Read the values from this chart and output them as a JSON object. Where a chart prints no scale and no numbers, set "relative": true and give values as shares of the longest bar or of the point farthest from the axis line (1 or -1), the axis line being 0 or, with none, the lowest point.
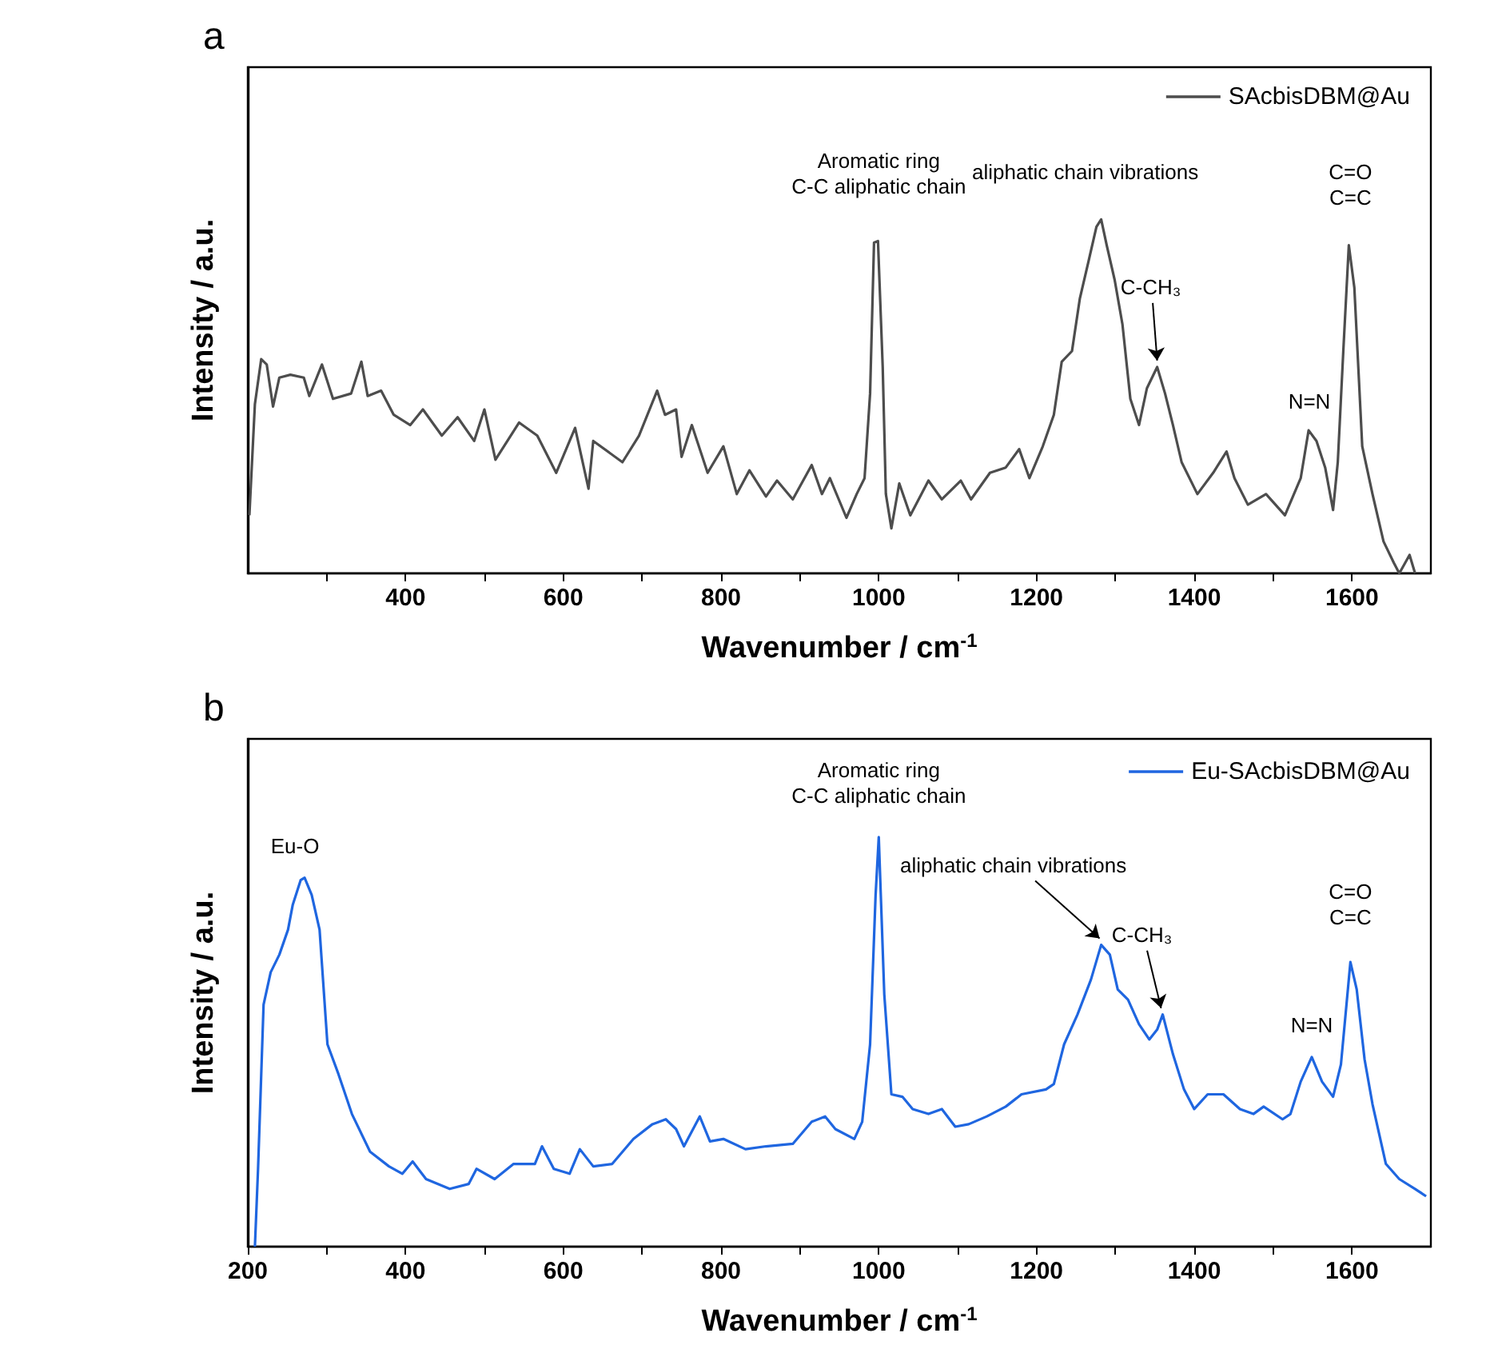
{
  "chart_data": [
    {
      "type": "line",
      "title": "a",
      "xlabel": "Wavenumber / cm$^{-1}$",
      "ylabel": "Intensity / a.u.",
      "relative": true,
      "legend": "top right",
      "tick_labels": "x",
      "xlim": [
        200,
        1700
      ],
      "xticks": [
        {
          "value": 300,
          "label": null
        },
        400,
        {
          "value": 500,
          "label": null
        },
        600,
        {
          "value": 700,
          "label": null
        },
        800,
        {
          "value": 900,
          "label": null
        },
        1000,
        {
          "value": 1100,
          "label": null
        },
        1200,
        {
          "value": 1300,
          "label": null
        },
        1400,
        {
          "value": 1500,
          "label": null
        },
        1600
      ],
      "annotations": [
        {
          "text": "Aromatic ring\nC-C aliphatic chain",
          "x": 1000,
          "y": 0.939
        },
        {
          "text": "aliphatic chain vibrations",
          "x": 1282,
          "y": 0.999
        },
        {
          "text": "C-CH₃",
          "x": 1355,
          "y": 0.583
        },
        {
          "text": "N=N",
          "x": 1550,
          "y": 0.404
        },
        {
          "text": "C=O\nC=C",
          "x": 1598,
          "y": 0.927
        }
      ],
      "series": [
        {
          "name": "SAcbisDBM@Au",
          "color": "#4d4d4d",
          "x": [
            202,
            209,
            217,
            224,
            232,
            240,
            254,
            271,
            278,
            294,
            308,
            331,
            344,
            352,
            369,
            385,
            406,
            422,
            446,
            466,
            487,
            500,
            514,
            544,
            567,
            591,
            615,
            632,
            638,
            675,
            696,
            719,
            729,
            743,
            750,
            763,
            783,
            803,
            820,
            836,
            857,
            871,
            891,
            915,
            928,
            938,
            959,
            972,
            982,
            989,
            994,
            999,
            1005,
            1009,
            1016,
            1026,
            1040,
            1063,
            1080,
            1104,
            1117,
            1141,
            1161,
            1178,
            1191,
            1208,
            1222,
            1232,
            1245,
            1255,
            1266,
            1276,
            1282,
            1289,
            1299,
            1309,
            1319,
            1330,
            1340,
            1353,
            1363,
            1373,
            1384,
            1404,
            1424,
            1441,
            1451,
            1468,
            1491,
            1515,
            1535,
            1545,
            1555,
            1566,
            1576,
            1582,
            1589,
            1596,
            1603,
            1613,
            1626,
            1640,
            1653,
            1660,
            1673,
            1680
          ],
          "values": [
            0.164,
            0.478,
            0.605,
            0.59,
            0.471,
            0.553,
            0.561,
            0.553,
            0.501,
            0.59,
            0.493,
            0.508,
            0.598,
            0.501,
            0.516,
            0.448,
            0.419,
            0.463,
            0.389,
            0.441,
            0.374,
            0.463,
            0.321,
            0.426,
            0.389,
            0.284,
            0.411,
            0.239,
            0.374,
            0.314,
            0.389,
            0.516,
            0.448,
            0.463,
            0.329,
            0.419,
            0.284,
            0.359,
            0.224,
            0.291,
            0.217,
            0.262,
            0.209,
            0.306,
            0.224,
            0.269,
            0.157,
            0.224,
            0.269,
            0.508,
            0.934,
            0.939,
            0.583,
            0.224,
            0.127,
            0.254,
            0.164,
            0.262,
            0.209,
            0.262,
            0.209,
            0.284,
            0.299,
            0.351,
            0.269,
            0.359,
            0.448,
            0.598,
            0.628,
            0.777,
            0.882,
            0.979,
            1,
            0.927,
            0.83,
            0.703,
            0.493,
            0.419,
            0.523,
            0.583,
            0.508,
            0.419,
            0.314,
            0.224,
            0.284,
            0.344,
            0.269,
            0.194,
            0.224,
            0.164,
            0.269,
            0.404,
            0.374,
            0.299,
            0.179,
            0.314,
            0.628,
            0.927,
            0.807,
            0.359,
            0.224,
            0.09,
            0.03,
            0,
            0.052,
            0
          ]
        }
      ]
    },
    {
      "type": "line",
      "title": "b",
      "xlabel": "Wavenumber / cm$^{-1}$",
      "ylabel": "Intensity / a.u.",
      "relative": true,
      "legend": "top right",
      "tick_labels": "x",
      "xlim": [
        200,
        1700
      ],
      "xticks": [
        200,
        {
          "value": 300,
          "label": null
        },
        400,
        {
          "value": 500,
          "label": null
        },
        600,
        {
          "value": 700,
          "label": null
        },
        800,
        {
          "value": 900,
          "label": null
        },
        1000,
        {
          "value": 1100,
          "label": null
        },
        1200,
        {
          "value": 1300,
          "label": null
        },
        1400,
        {
          "value": 1500,
          "label": null
        },
        1600
      ],
      "annotations": [
        {
          "text": "Eu-O",
          "x": 272,
          "y": 0.901
        },
        {
          "text": "Aromatic ring\nC-C aliphatic chain",
          "x": 1000,
          "y": 1
        },
        {
          "text": "aliphatic chain vibrations",
          "x": 1282,
          "y": 0.737
        },
        {
          "text": "C-CH₃",
          "x": 1360,
          "y": 0.567
        },
        {
          "text": "N=N",
          "x": 1549,
          "y": 0.463
        },
        {
          "text": "C=O\nC=C",
          "x": 1598,
          "y": 0.695
        }
      ],
      "series": [
        {
          "name": "Eu-SAcbisDBM@Au",
          "color": "#1f66e0",
          "x": [
            209,
            213,
            220,
            229,
            240,
            251,
            257,
            267,
            272,
            281,
            291,
            301,
            315,
            332,
            355,
            379,
            396,
            409,
            426,
            456,
            480,
            490,
            513,
            537,
            564,
            573,
            588,
            608,
            621,
            638,
            662,
            689,
            713,
            730,
            743,
            753,
            773,
            786,
            803,
            831,
            857,
            891,
            915,
            932,
            945,
            969,
            979,
            989,
            996,
            1000,
            1007,
            1016,
            1030,
            1043,
            1063,
            1080,
            1097,
            1114,
            1137,
            1161,
            1181,
            1212,
            1222,
            1235,
            1252,
            1269,
            1282,
            1293,
            1303,
            1316,
            1330,
            1343,
            1353,
            1360,
            1373,
            1387,
            1400,
            1417,
            1437,
            1458,
            1475,
            1488,
            1512,
            1522,
            1535,
            1549,
            1562,
            1576,
            1586,
            1598,
            1606,
            1616,
            1626,
            1643,
            1660,
            1680,
            1694
          ],
          "values": [
            0,
            0.19,
            0.591,
            0.67,
            0.713,
            0.774,
            0.835,
            0.895,
            0.901,
            0.859,
            0.774,
            0.494,
            0.421,
            0.324,
            0.232,
            0.196,
            0.178,
            0.208,
            0.165,
            0.141,
            0.153,
            0.19,
            0.165,
            0.202,
            0.202,
            0.245,
            0.19,
            0.178,
            0.238,
            0.196,
            0.202,
            0.263,
            0.299,
            0.311,
            0.287,
            0.245,
            0.318,
            0.257,
            0.263,
            0.238,
            0.245,
            0.251,
            0.305,
            0.318,
            0.287,
            0.263,
            0.305,
            0.494,
            0.859,
            1,
            0.616,
            0.372,
            0.366,
            0.336,
            0.324,
            0.336,
            0.293,
            0.299,
            0.318,
            0.342,
            0.372,
            0.384,
            0.397,
            0.494,
            0.567,
            0.652,
            0.737,
            0.713,
            0.628,
            0.603,
            0.543,
            0.506,
            0.53,
            0.567,
            0.47,
            0.384,
            0.336,
            0.372,
            0.372,
            0.336,
            0.324,
            0.342,
            0.311,
            0.324,
            0.403,
            0.463,
            0.403,
            0.366,
            0.445,
            0.695,
            0.628,
            0.457,
            0.348,
            0.202,
            0.165,
            0.141,
            0.123
          ]
        }
      ]
    }
  ]
}
